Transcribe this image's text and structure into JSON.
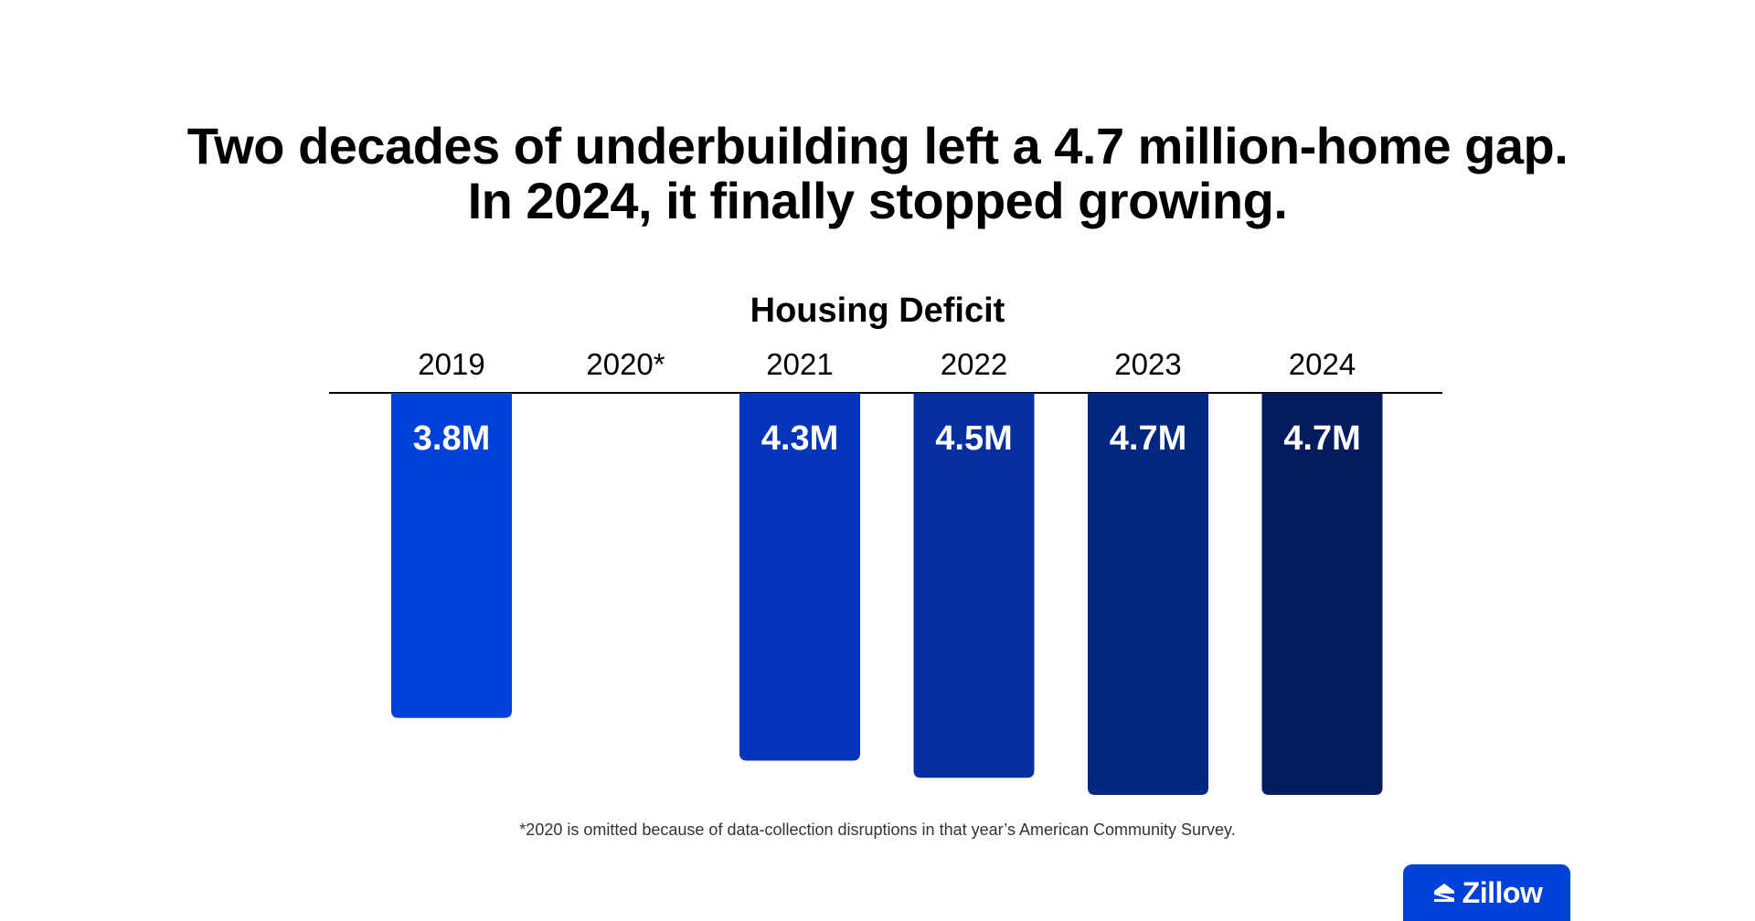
{
  "headline": {
    "line1": "Two decades of underbuilding left a 4.7 million-home gap.",
    "line2": "In 2024, it finally stopped growing."
  },
  "footnote": "*2020 is omitted because of data-collection disruptions in that year’s American Community Survey.",
  "brand": {
    "name": "Zillow",
    "color": "#0041d9"
  },
  "chart_data": {
    "type": "bar",
    "title": "Housing Deficit",
    "orientation": "downward-from-top-axis",
    "categories": [
      "2019",
      "2020*",
      "2021",
      "2022",
      "2023",
      "2024"
    ],
    "values": [
      3.8,
      null,
      4.3,
      4.5,
      4.7,
      4.7
    ],
    "unit": "million homes",
    "data_labels": [
      "3.8M",
      "",
      "4.3M",
      "4.5M",
      "4.7M",
      "4.7M"
    ],
    "bar_colors": [
      "#0041d9",
      "#0041d9",
      "#0535bb",
      "#06309f",
      "#042782",
      "#031c5e"
    ],
    "ylim": [
      0,
      4.7
    ],
    "grid": false,
    "legend": "none"
  }
}
